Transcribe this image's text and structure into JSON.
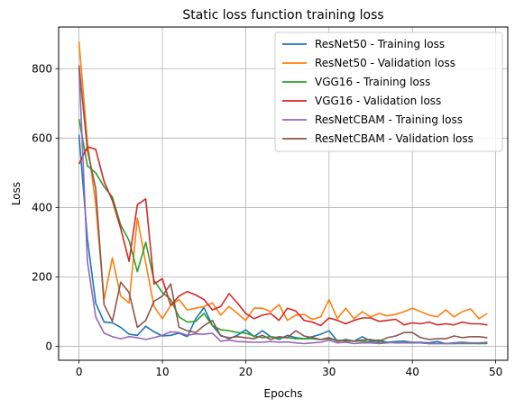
{
  "chart_data": {
    "type": "line",
    "title": "Static loss function training loss",
    "xlabel": "Epochs",
    "ylabel": "Loss",
    "xlim": [
      -2.45,
      51.45
    ],
    "ylim": [
      -40,
      920
    ],
    "xticks": [
      0,
      10,
      20,
      30,
      40,
      50
    ],
    "yticks": [
      0,
      200,
      400,
      600,
      800
    ],
    "grid": true,
    "legend_position": "top-right",
    "x": [
      0,
      1,
      2,
      3,
      4,
      5,
      6,
      7,
      8,
      9,
      10,
      11,
      12,
      13,
      14,
      15,
      16,
      17,
      18,
      19,
      20,
      21,
      22,
      23,
      24,
      25,
      26,
      27,
      28,
      29,
      30,
      31,
      32,
      33,
      34,
      35,
      36,
      37,
      38,
      39,
      40,
      41,
      42,
      43,
      44,
      45,
      46,
      47,
      48,
      49
    ],
    "series": [
      {
        "name": "ResNet50 - Training loss",
        "color": "#1f77b4",
        "values": [
          610,
          310,
          125,
          70,
          68,
          55,
          35,
          32,
          58,
          42,
          30,
          32,
          38,
          28,
          80,
          112,
          60,
          32,
          22,
          32,
          48,
          28,
          45,
          28,
          20,
          32,
          25,
          22,
          28,
          35,
          45,
          15,
          20,
          15,
          28,
          15,
          18,
          12,
          14,
          15,
          12,
          12,
          10,
          14,
          8,
          10,
          12,
          10,
          8,
          12
        ]
      },
      {
        "name": "ResNet50 - Validation loss",
        "color": "#ff7f0e",
        "values": [
          878,
          590,
          410,
          135,
          255,
          145,
          125,
          370,
          240,
          115,
          80,
          118,
          135,
          105,
          110,
          115,
          125,
          90,
          115,
          95,
          75,
          110,
          110,
          100,
          120,
          75,
          90,
          92,
          78,
          85,
          135,
          80,
          110,
          80,
          100,
          85,
          95,
          88,
          92,
          100,
          110,
          100,
          90,
          85,
          105,
          85,
          100,
          108,
          80,
          95
        ]
      },
      {
        "name": "VGG16 - Training loss",
        "color": "#2ca02c",
        "values": [
          655,
          520,
          500,
          460,
          430,
          350,
          305,
          215,
          300,
          190,
          155,
          135,
          85,
          70,
          72,
          95,
          60,
          48,
          45,
          40,
          38,
          30,
          25,
          28,
          25,
          25,
          22,
          22,
          22,
          20,
          22,
          18,
          15,
          15,
          15,
          12,
          12,
          12,
          10,
          10,
          10,
          10,
          8,
          8,
          8,
          8,
          8,
          8,
          8,
          8
        ]
      },
      {
        "name": "VGG16 - Validation loss",
        "color": "#d62728",
        "values": [
          525,
          575,
          568,
          475,
          420,
          340,
          245,
          408,
          425,
          180,
          195,
          118,
          145,
          158,
          148,
          135,
          105,
          115,
          152,
          125,
          95,
          80,
          90,
          95,
          75,
          110,
          102,
          75,
          70,
          60,
          82,
          75,
          65,
          75,
          82,
          82,
          72,
          75,
          78,
          62,
          68,
          65,
          70,
          62,
          65,
          62,
          70,
          65,
          65,
          62
        ]
      },
      {
        "name": "ResNetCBAM - Training loss",
        "color": "#9467bd",
        "values": [
          805,
          245,
          85,
          38,
          28,
          22,
          28,
          25,
          20,
          25,
          32,
          42,
          40,
          32,
          36,
          35,
          38,
          15,
          18,
          14,
          13,
          12,
          12,
          14,
          12,
          13,
          10,
          8,
          10,
          12,
          18,
          10,
          12,
          8,
          10,
          10,
          8,
          10,
          12,
          10,
          12,
          10,
          8,
          8,
          8,
          8,
          10,
          10,
          10,
          12
        ]
      },
      {
        "name": "ResNetCBAM - Validation loss",
        "color": "#8c564b",
        "values": [
          810,
          565,
          455,
          120,
          72,
          185,
          155,
          55,
          75,
          130,
          145,
          180,
          55,
          45,
          40,
          60,
          75,
          30,
          25,
          28,
          25,
          22,
          32,
          20,
          28,
          25,
          45,
          30,
          25,
          20,
          25,
          15,
          18,
          15,
          18,
          20,
          15,
          25,
          30,
          40,
          40,
          25,
          20,
          22,
          22,
          30,
          25,
          28,
          28,
          25
        ]
      }
    ]
  }
}
